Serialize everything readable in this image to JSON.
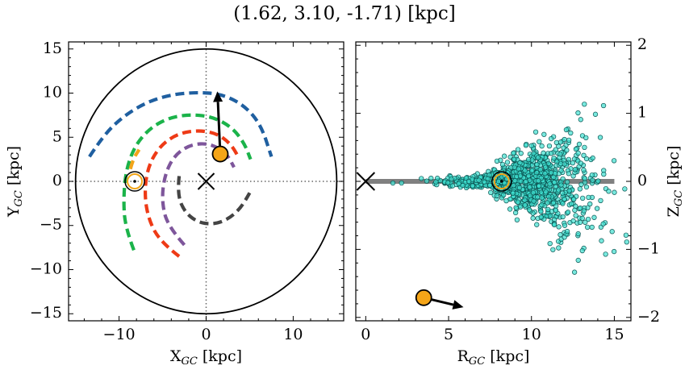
{
  "title": "(1.62, 3.10, -1.71) [kpc]",
  "colors": {
    "spiral_arms": [
      "#1f5fa0",
      "#1bb34a",
      "#f2a51a",
      "#ee3a16",
      "#7e569b",
      "#444444"
    ],
    "sun_marker": "#f2a51a",
    "object_marker": "#f5a518",
    "scatter_fill": "#3fe0d0",
    "scatter_edge": "#0b5452",
    "galactic_plane": "#808080"
  },
  "chart_data": [
    {
      "type": "scatter",
      "panel": "left",
      "title": "",
      "xlabel": "X",
      "xlabel_sub": "GC",
      "xlabel_unit": " [kpc]",
      "ylabel": "Y",
      "ylabel_sub": "GC",
      "ylabel_unit": " [kpc]",
      "xlim": [
        -15.8,
        15.8
      ],
      "ylim": [
        -15.8,
        15.8
      ],
      "xticks": [
        -10,
        0,
        10
      ],
      "yticks": [
        -15,
        -10,
        -5,
        0,
        5,
        10,
        15
      ],
      "tick_labels_x": [
        "−10",
        "0",
        "10"
      ],
      "tick_labels_y": [
        "−15",
        "−10",
        "−5",
        "0",
        "5",
        "10",
        "15"
      ],
      "boundary_circle_radius": 15,
      "galactic_center": [
        0,
        0
      ],
      "sun_position": [
        -8.2,
        0
      ],
      "object": {
        "x": 1.62,
        "y": 3.1
      },
      "velocity_arrow_tip": [
        1.3,
        10.2
      ],
      "spiral_arms": [
        {
          "color_index": 0,
          "radius": 10.4,
          "start_deg": 0,
          "end_deg": 0,
          "r_end": 0
        },
        {
          "color_index": 1,
          "radius": 7.6,
          "start_deg": 0,
          "end_deg": 0,
          "r_end": 0
        }
      ],
      "arm_segments": [
        {
          "color_index": 0,
          "points": [
            [
              -13.4,
              2.8
            ],
            [
              -11.8,
              5.2
            ],
            [
              -9.6,
              7.3
            ],
            [
              -7.0,
              8.9
            ],
            [
              -4.2,
              9.8
            ],
            [
              -1.2,
              10.1
            ],
            [
              1.8,
              9.9
            ],
            [
              4.4,
              8.6
            ],
            [
              6.3,
              6.4
            ],
            [
              7.5,
              2.8
            ]
          ]
        },
        {
          "color_index": 1,
          "points": [
            [
              -8.3,
              -7.8
            ],
            [
              -9.3,
              -5.2
            ],
            [
              -9.5,
              -2.0
            ],
            [
              -9.2,
              1.3
            ],
            [
              -8.2,
              4.0
            ],
            [
              -6.5,
              6.0
            ],
            [
              -4.3,
              7.2
            ],
            [
              -1.8,
              7.6
            ],
            [
              0.8,
              7.3
            ],
            [
              3.0,
              6.1
            ],
            [
              4.4,
              4.3
            ],
            [
              5.1,
              2.5
            ]
          ]
        },
        {
          "color_index": 2,
          "points": [
            [
              -8.7,
              1.4
            ],
            [
              -8.4,
              2.5
            ],
            [
              -7.7,
              3.6
            ]
          ]
        },
        {
          "color_index": 3,
          "points": [
            [
              -3.1,
              -8.5
            ],
            [
              -5.2,
              -6.9
            ],
            [
              -6.6,
              -4.4
            ],
            [
              -7.1,
              -1.4
            ],
            [
              -6.7,
              1.6
            ],
            [
              -5.4,
              3.9
            ],
            [
              -3.5,
              5.3
            ],
            [
              -1.2,
              5.8
            ],
            [
              1.1,
              5.5
            ],
            [
              2.8,
              4.3
            ],
            [
              3.8,
              2.6
            ]
          ]
        },
        {
          "color_index": 4,
          "points": [
            [
              -2.5,
              -7.2
            ],
            [
              -4.4,
              -5.1
            ],
            [
              -5.1,
              -2.3
            ],
            [
              -4.8,
              0.6
            ],
            [
              -3.7,
              2.9
            ],
            [
              -1.8,
              4.2
            ],
            [
              0.5,
              4.3
            ],
            [
              2.4,
              3.1
            ],
            [
              3.2,
              1.6
            ]
          ]
        },
        {
          "color_index": 5,
          "points": [
            [
              -3.1,
              0.6
            ],
            [
              -3.3,
              -1.3
            ],
            [
              -2.6,
              -3.3
            ],
            [
              -1.1,
              -4.6
            ],
            [
              0.8,
              -4.9
            ],
            [
              2.5,
              -4.3
            ],
            [
              3.8,
              -3.2
            ],
            [
              4.6,
              -2.0
            ],
            [
              5.0,
              -1.3
            ]
          ]
        }
      ]
    },
    {
      "type": "scatter",
      "panel": "right",
      "title": "",
      "xlabel": "R",
      "xlabel_sub": "GC",
      "xlabel_unit": " [kpc]",
      "ylabel": "Z",
      "ylabel_sub": "GC",
      "ylabel_unit": " [kpc]",
      "xlim": [
        -0.6,
        16
      ],
      "ylim": [
        -2.05,
        2.05
      ],
      "xticks": [
        0,
        5,
        10,
        15
      ],
      "yticks": [
        -2,
        -1,
        0,
        1,
        2
      ],
      "tick_labels_x": [
        "0",
        "5",
        "10",
        "15"
      ],
      "tick_labels_y": [
        "−2",
        "−1",
        "0",
        "1",
        "2"
      ],
      "galactic_plane": {
        "z": 0,
        "r_start": 0,
        "r_end": 15
      },
      "galactic_center": [
        0,
        0
      ],
      "sun_position": [
        8.2,
        0
      ],
      "object": {
        "r": 3.5,
        "z": -1.71
      },
      "velocity_arrow_tip": [
        5.9,
        -1.85
      ],
      "star_cloud": {
        "n_points": 1100,
        "r_range": [
          1.5,
          15.8
        ],
        "r_center": 9.6,
        "r_sigma": 2.2,
        "z_sigma_at_center": 0.22,
        "z_sigma_growth": 0.075
      }
    }
  ]
}
